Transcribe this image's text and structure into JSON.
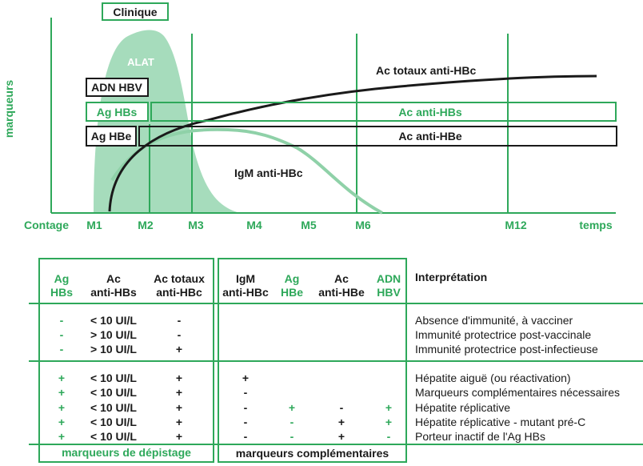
{
  "colors": {
    "green": "#2ea85a",
    "light_green": "#a6dcbc",
    "black": "#1a1a1a"
  },
  "diagram": {
    "clinique_label": "Clinique",
    "alat_label": "ALAT",
    "y_label": "marqueurs",
    "adn_hbv_label": "ADN HBV",
    "ag_hbs_label": "Ag HBs",
    "ac_anti_hbs_label": "Ac anti-HBs",
    "ag_hbe_label": "Ag HBe",
    "ac_anti_hbe_label": "Ac anti-HBe",
    "ac_totaux_label": "Ac totaux anti-HBc",
    "igm_label": "IgM anti-HBc",
    "x_start_label": "Contage",
    "x_end_label": "temps",
    "x_ticks": [
      "M1",
      "M2",
      "M3",
      "M4",
      "M5",
      "M6",
      "M12"
    ]
  },
  "table": {
    "headers": {
      "ag_hbs": [
        "Ag",
        "HBs"
      ],
      "ac_anti_hbs": [
        "Ac",
        "anti-HBs"
      ],
      "ac_totaux": [
        "Ac totaux",
        "anti-HBc"
      ],
      "igm": [
        "IgM",
        "anti-HBc"
      ],
      "ag_hbe": [
        "Ag",
        "HBe"
      ],
      "ac_anti_hbe": [
        "Ac",
        "anti-HBe"
      ],
      "adn_hbv": [
        "ADN",
        "HBV"
      ],
      "interpretation": "Interprétation"
    },
    "rows": [
      {
        "ag_hbs": "-",
        "ac_anti_hbs": "< 10 UI/L",
        "ac_totaux": "-",
        "igm": "",
        "ag_hbe": "",
        "ac_anti_hbe": "",
        "adn_hbv": "",
        "interpretation": "Absence d'immunité, à vacciner"
      },
      {
        "ag_hbs": "-",
        "ac_anti_hbs": "> 10 UI/L",
        "ac_totaux": "-",
        "igm": "",
        "ag_hbe": "",
        "ac_anti_hbe": "",
        "adn_hbv": "",
        "interpretation": "Immunité protectrice post-vaccinale"
      },
      {
        "ag_hbs": "-",
        "ac_anti_hbs": "> 10 UI/L",
        "ac_totaux": "+",
        "igm": "",
        "ag_hbe": "",
        "ac_anti_hbe": "",
        "adn_hbv": "",
        "interpretation": "Immunité protectrice post-infectieuse"
      },
      {
        "ag_hbs": "+",
        "ac_anti_hbs": "< 10 UI/L",
        "ac_totaux": "+",
        "igm": "+",
        "ag_hbe": "",
        "ac_anti_hbe": "",
        "adn_hbv": "",
        "interpretation": "Hépatite aiguë (ou réactivation)"
      },
      {
        "ag_hbs": "+",
        "ac_anti_hbs": "< 10 UI/L",
        "ac_totaux": "+",
        "igm": "-",
        "ag_hbe": "",
        "ac_anti_hbe": "",
        "adn_hbv": "",
        "interpretation": "Marqueurs complémentaires nécessaires"
      },
      {
        "ag_hbs": "+",
        "ac_anti_hbs": "< 10 UI/L",
        "ac_totaux": "+",
        "igm": "-",
        "ag_hbe": "+",
        "ac_anti_hbe": "-",
        "adn_hbv": "+",
        "interpretation": "Hépatite réplicative"
      },
      {
        "ag_hbs": "+",
        "ac_anti_hbs": "< 10 UI/L",
        "ac_totaux": "+",
        "igm": "-",
        "ag_hbe": "-",
        "ac_anti_hbe": "+",
        "adn_hbv": "+",
        "interpretation": "Hépatite réplicative - mutant pré-C"
      },
      {
        "ag_hbs": "+",
        "ac_anti_hbs": "< 10 UI/L",
        "ac_totaux": "+",
        "igm": "-",
        "ag_hbe": "-",
        "ac_anti_hbe": "+",
        "adn_hbv": "-",
        "interpretation": "Porteur inactif de l'Ag HBs"
      }
    ],
    "footer_left": "marqueurs de dépistage",
    "footer_right": "marqueurs complémentaires"
  }
}
